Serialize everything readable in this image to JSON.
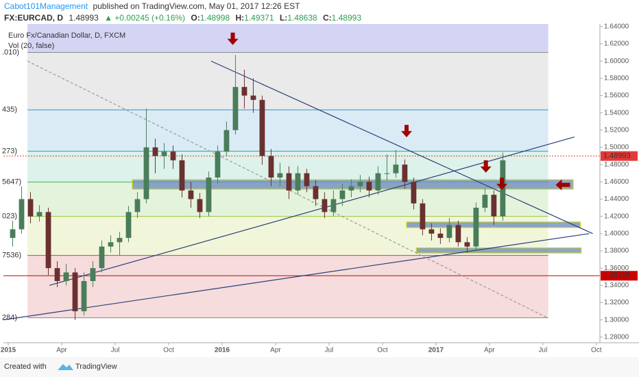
{
  "header": {
    "author": "Cabot101Management",
    "published": "published on TradingView.com, May 01, 2017 12:26 EST",
    "symbol": "FX:EURCAD, D",
    "price": "1.48993",
    "change": "▲ +0.00245 (+0.16%)",
    "ohlc": [
      {
        "label": "O:",
        "value": "1.48998"
      },
      {
        "label": "H:",
        "value": "1.49371"
      },
      {
        "label": "L:",
        "value": "1.48638"
      },
      {
        "label": "C:",
        "value": "1.48993"
      }
    ]
  },
  "footer": {
    "created": "Created with",
    "brand": "TradingView"
  },
  "chart_data": {
    "type": "candlestick",
    "title": "Euro Fx/Canadian Dollar, D, FXCM",
    "subtitle": "Vol (20, false)",
    "up_color": "#4a7d5a",
    "down_color": "#6b3030",
    "x": [
      0.25,
      0.75,
      1.25,
      1.75,
      2.25,
      2.75,
      3.25,
      3.75,
      4.25,
      4.75,
      5.25,
      5.75,
      6.25,
      6.75,
      7.25,
      7.75,
      8.25,
      8.75,
      9.25,
      9.75,
      10.25,
      10.75,
      11.25,
      11.75,
      12.25,
      12.75,
      13.25,
      13.75,
      14.25,
      14.75,
      15.25,
      15.75,
      16.25,
      16.75,
      17.25,
      17.75,
      18.25,
      18.75,
      19.25,
      19.75,
      20.25,
      20.75,
      21.25,
      21.75,
      22.25,
      22.75,
      23.25,
      23.75,
      24.25,
      24.75,
      25.25,
      25.75,
      26.25,
      26.75,
      27.25,
      27.75
    ],
    "open": [
      1.395,
      1.405,
      1.44,
      1.42,
      1.425,
      1.36,
      1.345,
      1.355,
      1.31,
      1.345,
      1.36,
      1.385,
      1.39,
      1.395,
      1.425,
      1.44,
      1.5,
      1.49,
      1.495,
      1.485,
      1.45,
      1.44,
      1.425,
      1.465,
      1.495,
      1.52,
      1.57,
      1.56,
      1.555,
      1.49,
      1.465,
      1.47,
      1.45,
      1.47,
      1.455,
      1.44,
      1.425,
      1.44,
      1.45,
      1.455,
      1.46,
      1.45,
      1.47,
      1.47,
      1.48,
      1.46,
      1.435,
      1.405,
      1.4,
      1.395,
      1.41,
      1.39,
      1.385,
      1.43,
      1.445,
      1.42
    ],
    "high": [
      1.415,
      1.455,
      1.448,
      1.433,
      1.43,
      1.368,
      1.365,
      1.36,
      1.355,
      1.368,
      1.392,
      1.398,
      1.402,
      1.432,
      1.448,
      1.545,
      1.51,
      1.505,
      1.502,
      1.492,
      1.46,
      1.447,
      1.472,
      1.502,
      1.53,
      1.607,
      1.59,
      1.58,
      1.56,
      1.498,
      1.482,
      1.478,
      1.478,
      1.475,
      1.462,
      1.448,
      1.45,
      1.458,
      1.463,
      1.468,
      1.466,
      1.478,
      1.492,
      1.497,
      1.486,
      1.465,
      1.44,
      1.412,
      1.406,
      1.418,
      1.415,
      1.396,
      1.436,
      1.452,
      1.45,
      1.494
    ],
    "low": [
      1.385,
      1.4,
      1.412,
      1.414,
      1.352,
      1.338,
      1.34,
      1.3,
      1.305,
      1.338,
      1.355,
      1.378,
      1.375,
      1.39,
      1.418,
      1.435,
      1.47,
      1.475,
      1.475,
      1.442,
      1.43,
      1.418,
      1.42,
      1.458,
      1.49,
      1.515,
      1.545,
      1.54,
      1.48,
      1.455,
      1.455,
      1.44,
      1.445,
      1.448,
      1.432,
      1.418,
      1.42,
      1.432,
      1.442,
      1.448,
      1.442,
      1.445,
      1.462,
      1.465,
      1.452,
      1.428,
      1.398,
      1.392,
      1.388,
      1.39,
      1.385,
      1.378,
      1.38,
      1.425,
      1.41,
      1.415
    ],
    "close": [
      1.405,
      1.44,
      1.42,
      1.425,
      1.36,
      1.345,
      1.355,
      1.31,
      1.345,
      1.36,
      1.385,
      1.39,
      1.395,
      1.425,
      1.44,
      1.5,
      1.49,
      1.495,
      1.485,
      1.45,
      1.44,
      1.425,
      1.465,
      1.495,
      1.52,
      1.57,
      1.56,
      1.555,
      1.49,
      1.465,
      1.47,
      1.45,
      1.47,
      1.455,
      1.44,
      1.425,
      1.44,
      1.45,
      1.455,
      1.46,
      1.45,
      1.47,
      1.47,
      1.48,
      1.46,
      1.435,
      1.405,
      1.4,
      1.395,
      1.41,
      1.39,
      1.385,
      1.43,
      1.445,
      1.42,
      1.485
    ],
    "xlim": [
      -0.27,
      33.2
    ],
    "ylim": [
      1.2735,
      1.643
    ],
    "xticks": [
      {
        "value": 0,
        "label": "2015"
      },
      {
        "value": 3,
        "label": "Apr"
      },
      {
        "value": 6,
        "label": "Jul"
      },
      {
        "value": 9,
        "label": "Oct"
      },
      {
        "value": 12,
        "label": "2016"
      },
      {
        "value": 15,
        "label": "Apr"
      },
      {
        "value": 18,
        "label": "Jul"
      },
      {
        "value": 21,
        "label": "Oct"
      },
      {
        "value": 24,
        "label": "2017"
      },
      {
        "value": 27,
        "label": "Apr"
      },
      {
        "value": 30,
        "label": "Jul"
      },
      {
        "value": 33,
        "label": "Oct"
      }
    ],
    "yticks": [
      {
        "value": 1.28,
        "label": "1.28000"
      },
      {
        "value": 1.3,
        "label": "1.30000"
      },
      {
        "value": 1.32,
        "label": "1.32000"
      },
      {
        "value": 1.34,
        "label": "1.34000"
      },
      {
        "value": 1.36,
        "label": "1.36000"
      },
      {
        "value": 1.38,
        "label": "1.38000"
      },
      {
        "value": 1.4,
        "label": "1.40000"
      },
      {
        "value": 1.42,
        "label": "1.42000"
      },
      {
        "value": 1.44,
        "label": "1.44000"
      },
      {
        "value": 1.46,
        "label": "1.46000"
      },
      {
        "value": 1.48,
        "label": "1.48000"
      },
      {
        "value": 1.5,
        "label": "1.50000"
      },
      {
        "value": 1.52,
        "label": "1.52000"
      },
      {
        "value": 1.54,
        "label": "1.54000"
      },
      {
        "value": 1.56,
        "label": "1.56000"
      },
      {
        "value": 1.58,
        "label": "1.58000"
      },
      {
        "value": 1.6,
        "label": "1.60000"
      },
      {
        "value": 1.62,
        "label": "1.62000"
      },
      {
        "value": 1.64,
        "label": "1.64000"
      }
    ],
    "fib": {
      "x": [
        1.08,
        30.3
      ],
      "levels": [
        1.61,
        1.5435,
        1.4955,
        1.4597,
        1.42,
        1.3747,
        1.3024
      ],
      "labels": [
        ".010)",
        "435)",
        "273)",
        "5647)",
        "023)",
        "7536)",
        "284)"
      ],
      "line_colors": [
        "#888888",
        "#3a8fc0",
        "#2aa0a0",
        "#3cb44b",
        "#9bc23c",
        "#d04040",
        "#888888"
      ],
      "band_colors": [
        "#cccdf2",
        "#e6e6e6",
        "#d3e7f5",
        "#d6f0e8",
        "#dff1d6",
        "#eef4d4",
        "#f5d6d6"
      ]
    },
    "price_lines": [
      {
        "value": 1.35115,
        "color": "#cc0000",
        "dashed": false
      },
      {
        "value": 1.48993,
        "color": "#e53935",
        "dashed": true
      }
    ],
    "zones": [
      {
        "x": [
          6.96,
          31.7
        ],
        "y": [
          1.4515,
          1.4625
        ]
      },
      {
        "x": [
          22.35,
          32.1
        ],
        "y": [
          1.407,
          1.4135
        ]
      },
      {
        "x": [
          22.9,
          32.15
        ],
        "y": [
          1.3775,
          1.3835
        ]
      }
    ],
    "zone_fill": "#6f8fc4",
    "zone_border": "#d8d800",
    "trendlines": [
      {
        "x": [
          11.38,
          32.8
        ],
        "y": [
          1.6,
          1.4
        ],
        "color": "#2b3f7a",
        "dashed": false
      },
      {
        "x": [
          2.31,
          31.77
        ],
        "y": [
          1.34,
          1.512
        ],
        "color": "#2b3f7a",
        "dashed": false
      },
      {
        "x": [
          -0.27,
          32.6
        ],
        "y": [
          1.3,
          1.4
        ],
        "color": "#2b3f7a",
        "dashed": false
      },
      {
        "x": [
          1.08,
          30.3
        ],
        "y": [
          1.6,
          1.302
        ],
        "color": "#999999",
        "dashed": true
      }
    ],
    "arrows": [
      {
        "x": 12.6,
        "y": 1.625,
        "dir": "down"
      },
      {
        "x": 22.35,
        "y": 1.518,
        "dir": "down"
      },
      {
        "x": 26.8,
        "y": 1.477,
        "dir": "down"
      },
      {
        "x": 27.7,
        "y": 1.457,
        "dir": "down"
      },
      {
        "x": 31.1,
        "y": 1.4565,
        "dir": "left"
      }
    ],
    "arrow_color": "#a00000"
  }
}
